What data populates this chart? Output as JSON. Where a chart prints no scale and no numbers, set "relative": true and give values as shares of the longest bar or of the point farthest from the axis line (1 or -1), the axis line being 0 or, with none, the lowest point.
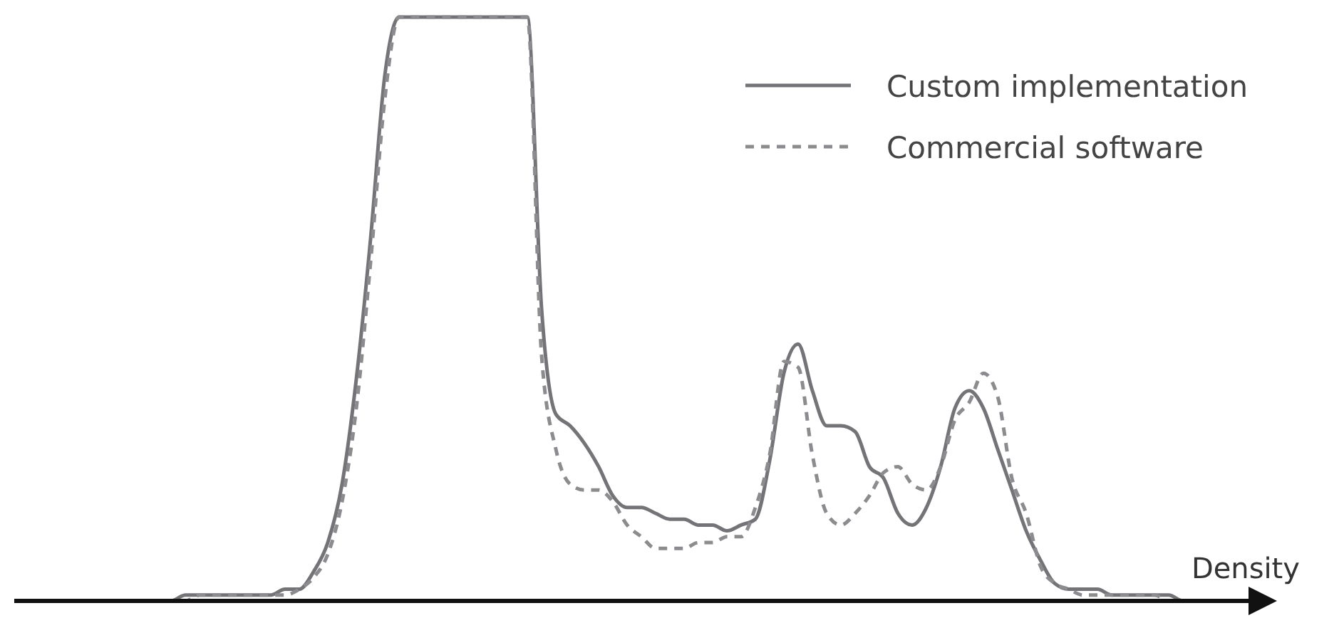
{
  "chart_data": {
    "type": "line",
    "relative": true,
    "xlabel": "Density",
    "legend": "top right",
    "categories": [
      null,
      null,
      null,
      null,
      null,
      null,
      null,
      null,
      null,
      null,
      null,
      null,
      null,
      null,
      null,
      null,
      null,
      null,
      null,
      null,
      null,
      null,
      null,
      null,
      null,
      null,
      null,
      null,
      null,
      null,
      null,
      null,
      null,
      null,
      null,
      null,
      null,
      null,
      null,
      null,
      null,
      null,
      null,
      null,
      null,
      null,
      null,
      null,
      null,
      null,
      null,
      null,
      null,
      null,
      null,
      null,
      null,
      null,
      null,
      null,
      null,
      null,
      null,
      null,
      null,
      null,
      null,
      null,
      null,
      null,
      null,
      null,
      null,
      null,
      null,
      null,
      null,
      null,
      null,
      null,
      null,
      null
    ],
    "series": [
      {
        "name": "Custom implementation",
        "color": "#747478",
        "line_style": "solid",
        "values": [
          0,
          0,
          0,
          0,
          0,
          0,
          0,
          0,
          0,
          0.01,
          0.01,
          0.01,
          0.01,
          0.01,
          0.01,
          0.01,
          0.02,
          0.02,
          0.05,
          0.1,
          0.2,
          0.38,
          0.62,
          0.9,
          1,
          1,
          1,
          1,
          1,
          1,
          1,
          1,
          1,
          1,
          0.5,
          0.32,
          0.3,
          0.27,
          0.23,
          0.18,
          0.16,
          0.16,
          0.15,
          0.14,
          0.14,
          0.13,
          0.13,
          0.12,
          0.13,
          0.14,
          0.24,
          0.39,
          0.44,
          0.36,
          0.3,
          0.3,
          0.29,
          0.23,
          0.21,
          0.15,
          0.13,
          0.16,
          0.23,
          0.33,
          0.36,
          0.33,
          0.26,
          0.19,
          0.12,
          0.07,
          0.03,
          0.02,
          0.02,
          0.02,
          0.01,
          0.01,
          0.01,
          0.01,
          0.01,
          0,
          0,
          0
        ]
      },
      {
        "name": "Commercial software",
        "color": "#8c8c90",
        "line_style": "dashed",
        "values": [
          0,
          0,
          0,
          0,
          0,
          0,
          0,
          0,
          0,
          0,
          0.01,
          0.01,
          0.01,
          0.01,
          0.01,
          0.01,
          0.01,
          0.02,
          0.04,
          0.08,
          0.17,
          0.33,
          0.58,
          0.86,
          1,
          1,
          1,
          1,
          1,
          1,
          1,
          1,
          1,
          1,
          0.42,
          0.26,
          0.2,
          0.19,
          0.19,
          0.17,
          0.13,
          0.11,
          0.09,
          0.09,
          0.09,
          0.1,
          0.1,
          0.11,
          0.11,
          0.16,
          0.25,
          0.41,
          0.4,
          0.25,
          0.15,
          0.13,
          0.15,
          0.18,
          0.22,
          0.23,
          0.2,
          0.19,
          0.23,
          0.31,
          0.34,
          0.39,
          0.35,
          0.21,
          0.15,
          0.06,
          0.03,
          0.02,
          0.01,
          0.01,
          0.01,
          0.01,
          0.01,
          0.01,
          0,
          0,
          0,
          0
        ]
      }
    ]
  }
}
